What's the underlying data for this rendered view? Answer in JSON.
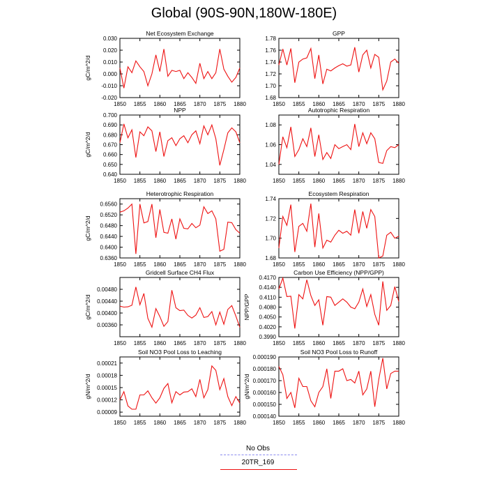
{
  "title": "Global (90S-90N,180W-180E)",
  "line_color": "#ee1111",
  "obs_color": "#8888ee",
  "legend": {
    "obs_label": "No Obs",
    "model_label": "20TR_169"
  },
  "chart_data": [
    {
      "type": "line",
      "title": "Net Ecosystem Exchange",
      "ylabel": "gC/m^2/d",
      "xlim": [
        1850,
        1880
      ],
      "ylim": [
        -0.02,
        0.03
      ],
      "xticks": [
        1850,
        1855,
        1860,
        1865,
        1870,
        1875,
        1880
      ],
      "yticks": [
        "-0.020",
        "-0.010",
        "0.000",
        "0.010",
        "0.020",
        "0.030"
      ],
      "x_start": 1850,
      "values": [
        0.005,
        -0.012,
        0.006,
        0.001,
        0.011,
        0.006,
        0.002,
        -0.01,
        0.0,
        0.016,
        0.002,
        0.021,
        -0.002,
        0.003,
        0.002,
        0.003,
        -0.004,
        0.001,
        -0.003,
        -0.008,
        0.009,
        -0.004,
        0.002,
        -0.004,
        0.001,
        0.021,
        0.004,
        -0.002,
        -0.007,
        -0.003,
        0.005
      ]
    },
    {
      "type": "line",
      "title": "GPP",
      "ylabel": "",
      "xlim": [
        1850,
        1880
      ],
      "ylim": [
        1.68,
        1.78
      ],
      "xticks": [
        1850,
        1855,
        1860,
        1865,
        1870,
        1875,
        1880
      ],
      "yticks": [
        "1.68",
        "1.70",
        "1.72",
        "1.74",
        "1.76",
        "1.78"
      ],
      "x_start": 1850,
      "values": [
        1.735,
        1.762,
        1.735,
        1.763,
        1.705,
        1.74,
        1.745,
        1.747,
        1.763,
        1.712,
        1.752,
        1.703,
        1.728,
        1.725,
        1.73,
        1.734,
        1.737,
        1.733,
        1.735,
        1.765,
        1.723,
        1.752,
        1.76,
        1.73,
        1.753,
        1.748,
        1.693,
        1.708,
        1.74,
        1.745,
        1.738
      ]
    },
    {
      "type": "line",
      "title": "NPP",
      "ylabel": "gC/m^2/d",
      "xlim": [
        1850,
        1880
      ],
      "ylim": [
        0.64,
        0.7
      ],
      "xticks": [
        1850,
        1855,
        1860,
        1865,
        1870,
        1875,
        1880
      ],
      "yticks": [
        "0.640",
        "0.650",
        "0.660",
        "0.670",
        "0.680",
        "0.690",
        "0.700"
      ],
      "x_start": 1850,
      "values": [
        0.672,
        0.691,
        0.677,
        0.685,
        0.657,
        0.683,
        0.679,
        0.688,
        0.684,
        0.663,
        0.683,
        0.658,
        0.674,
        0.677,
        0.669,
        0.676,
        0.679,
        0.672,
        0.68,
        0.684,
        0.671,
        0.689,
        0.68,
        0.69,
        0.676,
        0.649,
        0.665,
        0.682,
        0.687,
        0.683,
        0.672
      ]
    },
    {
      "type": "line",
      "title": "Autotrophic Respiration",
      "ylabel": "",
      "xlim": [
        1850,
        1880
      ],
      "ylim": [
        1.03,
        1.09
      ],
      "xticks": [
        1850,
        1855,
        1860,
        1865,
        1870,
        1875,
        1880
      ],
      "yticks": [
        "1.04",
        "1.06",
        "1.08"
      ],
      "x_start": 1850,
      "values": [
        1.04,
        1.068,
        1.057,
        1.078,
        1.048,
        1.055,
        1.066,
        1.058,
        1.077,
        1.048,
        1.07,
        1.045,
        1.052,
        1.046,
        1.06,
        1.056,
        1.058,
        1.06,
        1.055,
        1.081,
        1.058,
        1.072,
        1.061,
        1.072,
        1.066,
        1.042,
        1.041,
        1.054,
        1.058,
        1.057,
        1.06
      ]
    },
    {
      "type": "line",
      "title": "Heterotrophic Respiration",
      "ylabel": "gC/m^2/d",
      "xlim": [
        1850,
        1880
      ],
      "ylim": [
        0.636,
        0.658
      ],
      "xticks": [
        1850,
        1855,
        1860,
        1865,
        1870,
        1875,
        1880
      ],
      "yticks": [
        "0.6360",
        "0.6400",
        "0.6440",
        "0.6480",
        "0.6520",
        "0.6560"
      ],
      "x_start": 1850,
      "values": [
        0.653,
        0.6535,
        0.6545,
        0.656,
        0.6375,
        0.656,
        0.649,
        0.6495,
        0.656,
        0.6435,
        0.654,
        0.6455,
        0.6452,
        0.6505,
        0.643,
        0.6505,
        0.647,
        0.6468,
        0.6488,
        0.6472,
        0.6482,
        0.655,
        0.6525,
        0.6535,
        0.6505,
        0.6385,
        0.6392,
        0.6493,
        0.6491,
        0.6465,
        0.6452
      ]
    },
    {
      "type": "line",
      "title": "Ecosystem Respiration",
      "ylabel": "",
      "xlim": [
        1850,
        1880
      ],
      "ylim": [
        1.68,
        1.74
      ],
      "xticks": [
        1850,
        1855,
        1860,
        1865,
        1870,
        1875,
        1880
      ],
      "yticks": [
        "1.68",
        "1.70",
        "1.72",
        "1.74"
      ],
      "x_start": 1850,
      "values": [
        1.69,
        1.722,
        1.713,
        1.734,
        1.686,
        1.712,
        1.715,
        1.707,
        1.735,
        1.691,
        1.725,
        1.69,
        1.698,
        1.696,
        1.703,
        1.708,
        1.705,
        1.707,
        1.703,
        1.729,
        1.705,
        1.727,
        1.71,
        1.729,
        1.722,
        1.68,
        1.682,
        1.703,
        1.706,
        1.7,
        1.702
      ]
    },
    {
      "type": "line",
      "title": "Gridcell Surface CH4 Flux",
      "ylabel": "gC/m^2/d",
      "xlim": [
        1850,
        1880
      ],
      "ylim": [
        0.0032,
        0.0052
      ],
      "xticks": [
        1850,
        1855,
        1860,
        1865,
        1870,
        1875,
        1880
      ],
      "yticks": [
        "0.00360",
        "0.00400",
        "0.00440",
        "0.00480"
      ],
      "x_start": 1850,
      "values": [
        0.00423,
        0.0042,
        0.00421,
        0.00426,
        0.00488,
        0.00428,
        0.00466,
        0.00382,
        0.00352,
        0.00415,
        0.00388,
        0.00355,
        0.00371,
        0.00477,
        0.00418,
        0.00408,
        0.0041,
        0.00392,
        0.00383,
        0.00393,
        0.00418,
        0.00385,
        0.00388,
        0.00405,
        0.0036,
        0.00403,
        0.00362,
        0.00412,
        0.00425,
        0.0039,
        0.00352
      ]
    },
    {
      "type": "line",
      "title": "Carbon Use Efficiency (NPP/GPP)",
      "ylabel": "NPP/GPP",
      "xlim": [
        1850,
        1880
      ],
      "ylim": [
        0.399,
        0.417
      ],
      "xticks": [
        1850,
        1855,
        1860,
        1865,
        1870,
        1875,
        1880
      ],
      "yticks": [
        "0.3990",
        "0.4020",
        "0.4050",
        "0.4080",
        "0.4110",
        "0.4140",
        "0.4170"
      ],
      "x_start": 1850,
      "values": [
        0.4135,
        0.4168,
        0.4112,
        0.4113,
        0.4015,
        0.4118,
        0.4105,
        0.4163,
        0.4115,
        0.4085,
        0.4102,
        0.4025,
        0.4112,
        0.411,
        0.4085,
        0.4095,
        0.4105,
        0.4095,
        0.408,
        0.4075,
        0.4095,
        0.4135,
        0.4082,
        0.4118,
        0.4058,
        0.4025,
        0.4158,
        0.407,
        0.4085,
        0.4142,
        0.4097
      ]
    },
    {
      "type": "line",
      "title": "Soil NO3 Pool Loss to Leaching",
      "ylabel": "gN/m^2/d",
      "xlim": [
        1850,
        1880
      ],
      "ylim": [
        8e-05,
        0.000225
      ],
      "xticks": [
        1850,
        1855,
        1860,
        1865,
        1870,
        1875,
        1880
      ],
      "yticks": [
        "0.00009",
        "0.00012",
        "0.00015",
        "0.00018",
        "0.00021"
      ],
      "x_start": 1850,
      "values": [
        0.00012,
        0.00014,
        0.000105,
        9.7e-05,
        9.7e-05,
        0.000132,
        0.000132,
        0.000142,
        0.000125,
        0.000112,
        0.000125,
        0.000148,
        0.00016,
        0.000113,
        0.00014,
        0.000132,
        0.000139,
        0.00014,
        0.000147,
        0.000128,
        0.00017,
        0.000125,
        0.000145,
        0.000203,
        0.000192,
        0.000145,
        0.000172,
        0.000128,
        0.000106,
        0.000128,
        0.000112
      ]
    },
    {
      "type": "line",
      "title": "Soil NO3 Pool Loss to Runoff",
      "ylabel": "gN/m^2/d",
      "xlim": [
        1850,
        1880
      ],
      "ylim": [
        0.00014,
        0.00019
      ],
      "xticks": [
        1850,
        1855,
        1860,
        1865,
        1870,
        1875,
        1880
      ],
      "yticks": [
        "0.000140",
        "0.000150",
        "0.000160",
        "0.000170",
        "0.000180",
        "0.000190"
      ],
      "x_start": 1850,
      "values": [
        0.000182,
        0.000175,
        0.000155,
        0.00016,
        0.000147,
        0.000172,
        0.000165,
        0.000165,
        0.000153,
        0.000148,
        0.00016,
        0.000165,
        0.00018,
        0.000155,
        0.000178,
        0.000178,
        0.00018,
        0.00017,
        0.000171,
        0.000168,
        0.000178,
        0.000158,
        0.000163,
        0.000178,
        0.000148,
        0.000171,
        0.000189,
        0.000163,
        0.000176,
        0.000178,
        0.000178
      ]
    }
  ]
}
